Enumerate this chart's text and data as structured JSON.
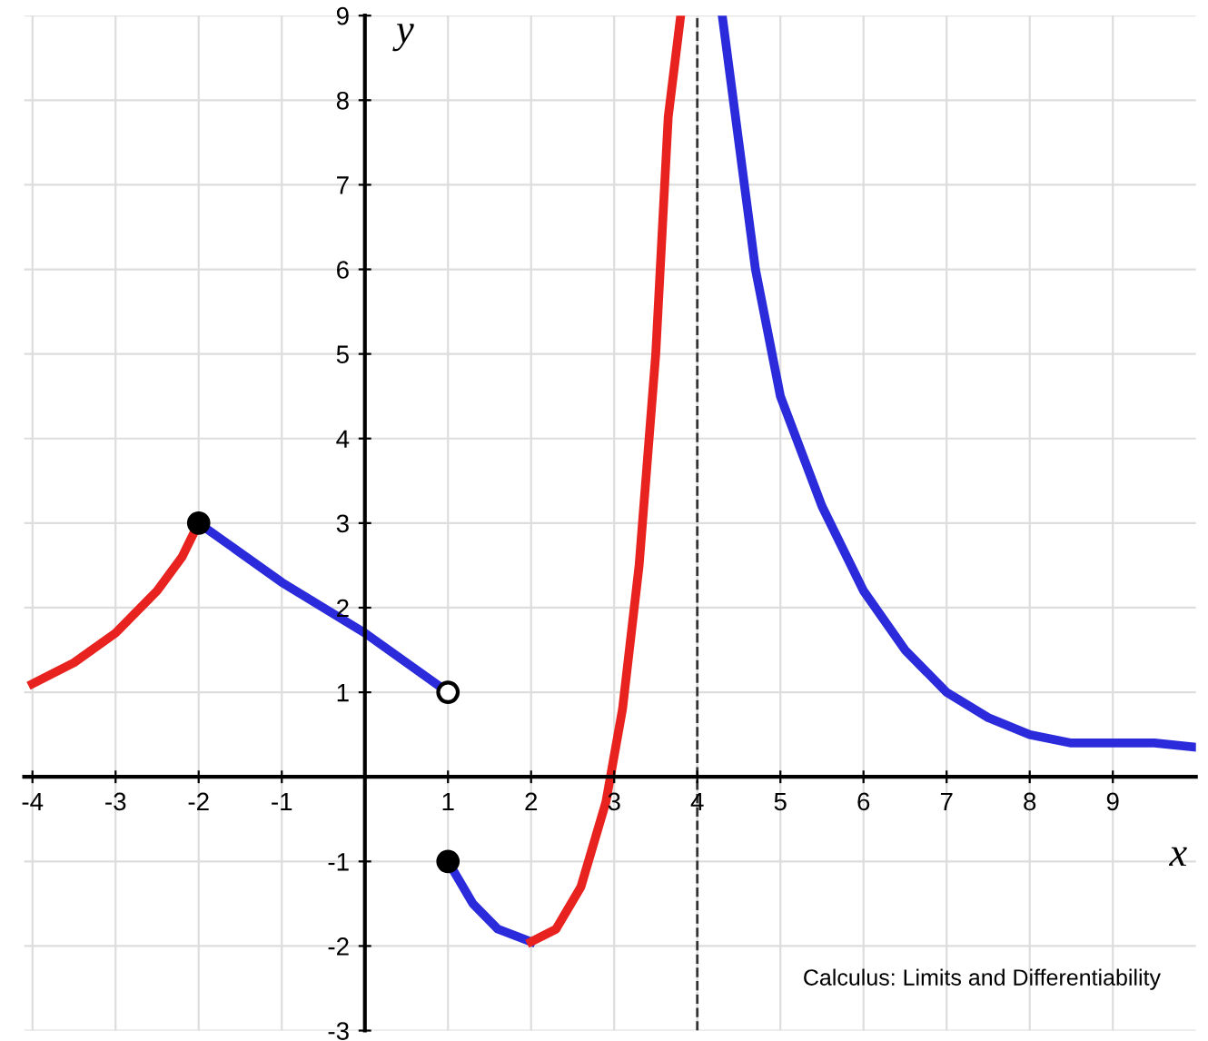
{
  "chart_data": {
    "type": "line",
    "xlabel": "x",
    "ylabel": "y",
    "xlim": [
      -4.1,
      10
    ],
    "ylim": [
      -3,
      9
    ],
    "xticks": [
      -4,
      -3,
      -2,
      -1,
      1,
      2,
      3,
      4,
      5,
      6,
      7,
      8,
      9
    ],
    "yticks": [
      -3,
      -2,
      -1,
      1,
      2,
      3,
      4,
      5,
      6,
      7,
      8,
      9
    ],
    "grid": true,
    "line_style": "solid",
    "series": [
      {
        "color": "#e8231f",
        "x": [
          -4,
          -3.5,
          -3,
          -2.5,
          -2.2,
          -2
        ],
        "values": [
          1.1,
          1.35,
          1.7,
          2.2,
          2.6,
          3
        ]
      },
      {
        "color": "#2b2bdb",
        "x": [
          -2,
          -1,
          0,
          1
        ],
        "values": [
          3,
          2.3,
          1.7,
          1
        ]
      },
      {
        "color": "#2b2bdb",
        "x": [
          1,
          1.3,
          1.6,
          2
        ],
        "values": [
          -1,
          -1.5,
          -1.8,
          -1.95
        ]
      },
      {
        "color": "#e8231f",
        "x": [
          2,
          2.3,
          2.6,
          2.9,
          3.1,
          3.3,
          3.5,
          3.65,
          3.8
        ],
        "values": [
          -1.95,
          -1.8,
          -1.3,
          -0.3,
          0.8,
          2.5,
          5,
          7.8,
          9
        ]
      },
      {
        "color": "#2b2bdb",
        "x": [
          4.3,
          4.5,
          4.7,
          5,
          5.5,
          6,
          6.5,
          7,
          7.5,
          8,
          8.5,
          9,
          9.5,
          10
        ],
        "values": [
          9,
          7.5,
          6,
          4.5,
          3.2,
          2.2,
          1.5,
          1,
          0.7,
          0.5,
          0.4,
          0.4,
          0.4,
          0.35
        ]
      },
      {
        "type": "scatter",
        "marker": "circle",
        "color": "#000000",
        "x": [
          -2,
          1
        ],
        "values": [
          3,
          -1
        ]
      },
      {
        "type": "scatter",
        "marker": "circle",
        "color": "#ffffff",
        "x": [
          1
        ],
        "values": [
          1
        ]
      }
    ],
    "ref_lines": [
      {
        "axis": "x",
        "value": 4,
        "line_style": "dashed",
        "color": "#333333"
      }
    ],
    "annotations": [
      "Calculus: Limits and Differentiability"
    ]
  }
}
